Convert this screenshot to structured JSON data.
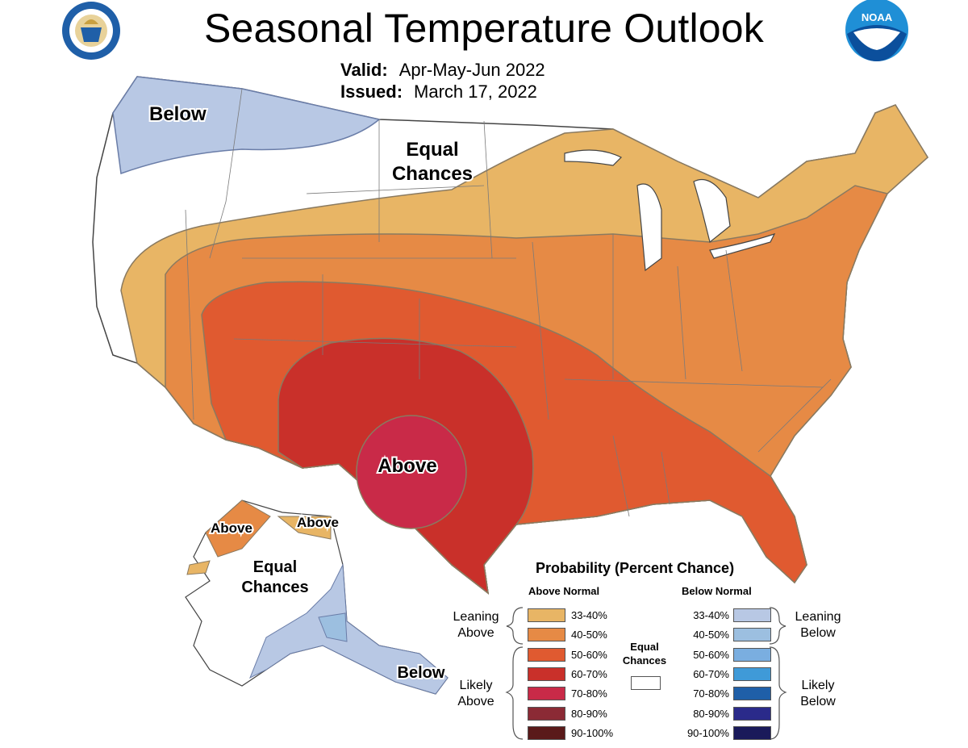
{
  "title": "Seasonal Temperature Outlook",
  "valid_label": "Valid:",
  "valid_value": "Apr-May-Jun 2022",
  "issued_label": "Issued:",
  "issued_value": "March 17, 2022",
  "logos": {
    "left": {
      "name": "dept-of-commerce-seal",
      "text": "DEPARTMENT OF COMMERCE · UNITED STATES OF AMERICA"
    },
    "right": {
      "name": "noaa-logo",
      "text": "NOAA"
    }
  },
  "map_labels": {
    "below_northwest": "Below",
    "equal_chances_main": [
      "Equal",
      "Chances"
    ],
    "above_south": "Above",
    "above_alaska_west": "Above",
    "above_alaska_north": "Above",
    "equal_chances_alaska": [
      "Equal",
      "Chances"
    ],
    "below_alaska_southeast": "Below"
  },
  "legend": {
    "title": "Probability (Percent Chance)",
    "above_header": "Above Normal",
    "below_header": "Below Normal",
    "leaning_above": [
      "Leaning",
      "Above"
    ],
    "likely_above": [
      "Likely",
      "Above"
    ],
    "leaning_below": [
      "Leaning",
      "Below"
    ],
    "likely_below": [
      "Likely",
      "Below"
    ],
    "equal_chances": [
      "Equal",
      "Chances"
    ],
    "equal_color": "#ffffff",
    "above": [
      {
        "range": "33-40%",
        "color": "#e8b565"
      },
      {
        "range": "40-50%",
        "color": "#e68a45"
      },
      {
        "range": "50-60%",
        "color": "#e05a30"
      },
      {
        "range": "60-70%",
        "color": "#c9302a"
      },
      {
        "range": "70-80%",
        "color": "#c92a48"
      },
      {
        "range": "80-90%",
        "color": "#8b2a35"
      },
      {
        "range": "90-100%",
        "color": "#5a1a1a"
      }
    ],
    "below": [
      {
        "range": "33-40%",
        "color": "#b8c8e4"
      },
      {
        "range": "40-50%",
        "color": "#9cbfe0"
      },
      {
        "range": "50-60%",
        "color": "#7aaee0"
      },
      {
        "range": "60-70%",
        "color": "#3f9ad8"
      },
      {
        "range": "70-80%",
        "color": "#1f5fa8"
      },
      {
        "range": "80-90%",
        "color": "#2a2a8a"
      },
      {
        "range": "90-100%",
        "color": "#1a1a5a"
      }
    ]
  }
}
